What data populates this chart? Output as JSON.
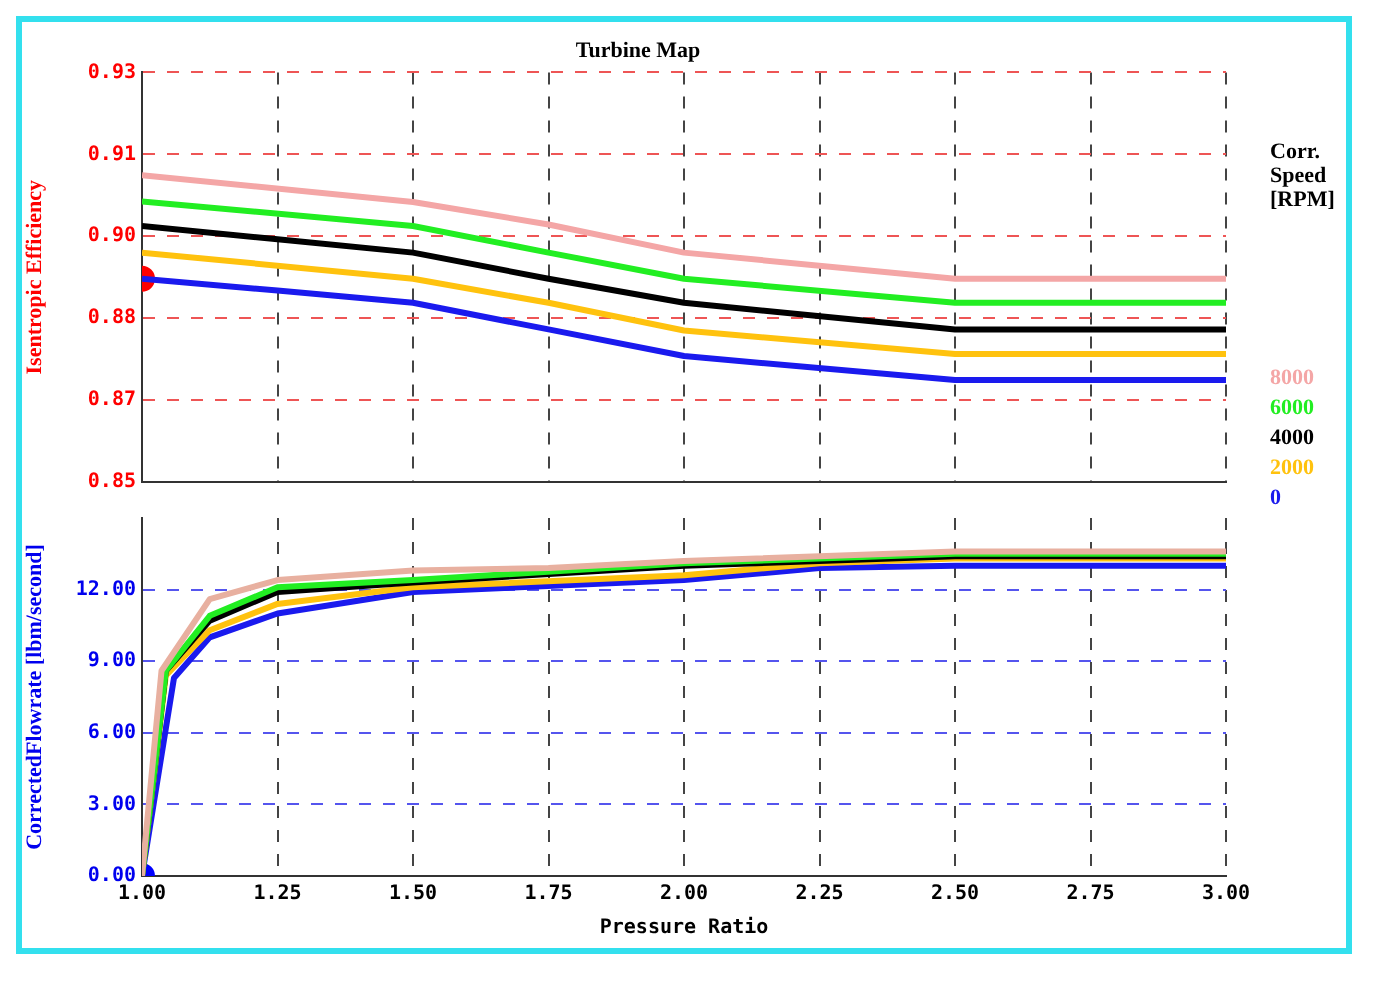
{
  "chart_data": [
    {
      "type": "line",
      "title": "Turbine Map",
      "ylabel": "Isentropic Efficiency",
      "legend_title": "Corr. Speed [RPM]",
      "legend": "right",
      "grid": true,
      "tick_labels": "y",
      "xlim": [
        1,
        3
      ],
      "xticks": [
        {
          "value": 1,
          "label": null
        },
        {
          "value": 1.25,
          "label": null
        },
        {
          "value": 1.5,
          "label": null
        },
        {
          "value": 1.75,
          "label": null
        },
        {
          "value": 2,
          "label": null
        },
        {
          "value": 2.25,
          "label": null
        },
        {
          "value": 2.5,
          "label": null
        },
        {
          "value": 2.75,
          "label": null
        },
        {
          "value": 3,
          "label": null
        }
      ],
      "ylim": [
        0.85,
        0.93
      ],
      "yticks": [
        {
          "value": 0.85,
          "label": "0.85"
        },
        {
          "value": 0.866,
          "label": "0.87"
        },
        {
          "value": 0.882,
          "label": "0.88"
        },
        {
          "value": 0.898,
          "label": "0.90"
        },
        {
          "value": 0.914,
          "label": "0.91"
        },
        {
          "value": 0.93,
          "label": "0.93"
        }
      ],
      "series": [
        {
          "name": "8000",
          "color": "#f4a6a6",
          "x": [
            1,
            1.5,
            1.75,
            2,
            2.5,
            3
          ],
          "values": [
            0.9099,
            0.9047,
            0.9003,
            0.8948,
            0.8897,
            0.8897
          ]
        },
        {
          "name": "6000",
          "color": "#22ee22",
          "x": [
            1,
            1.5,
            1.75,
            2,
            2.5,
            3
          ],
          "values": [
            0.9048,
            0.9,
            0.8948,
            0.8897,
            0.885,
            0.885
          ]
        },
        {
          "name": "4000",
          "color": "#000000",
          "x": [
            1,
            1.25,
            1.5,
            1.75,
            2,
            2.5,
            3
          ],
          "values": [
            0.9,
            0.8974,
            0.8948,
            0.8897,
            0.885,
            0.8798,
            0.8798
          ]
        },
        {
          "name": "2000",
          "color": "#ffc20e",
          "x": [
            1,
            1.5,
            1.75,
            2,
            2.5,
            3
          ],
          "values": [
            0.8948,
            0.8897,
            0.885,
            0.8796,
            0.875,
            0.875
          ]
        },
        {
          "name": "0",
          "color": "#1a1aee",
          "x": [
            1,
            1.25,
            1.5,
            1.75,
            2,
            2.5,
            3
          ],
          "values": [
            0.8897,
            0.8874,
            0.885,
            0.8798,
            0.8746,
            0.8699,
            0.8699
          ]
        },
        {
          "type": "scatter",
          "color": "#ff0000",
          "x": [
            1
          ],
          "values": [
            0.8897
          ]
        }
      ]
    },
    {
      "type": "line",
      "xlabel": "Pressure Ratio",
      "ylabel": "CorrectedFlowrate [lbm/second]",
      "grid": true,
      "xlim": [
        1,
        3
      ],
      "xticks": [
        {
          "value": 1,
          "label": "1.00"
        },
        {
          "value": 1.25,
          "label": "1.25"
        },
        {
          "value": 1.5,
          "label": "1.50"
        },
        {
          "value": 1.75,
          "label": "1.75"
        },
        {
          "value": 2,
          "label": "2.00"
        },
        {
          "value": 2.25,
          "label": "2.25"
        },
        {
          "value": 2.5,
          "label": "2.50"
        },
        {
          "value": 2.75,
          "label": "2.75"
        },
        {
          "value": 3,
          "label": "3.00"
        }
      ],
      "ylim": [
        0,
        15
      ],
      "yticks": [
        {
          "value": 0,
          "label": "0.00"
        },
        {
          "value": 3,
          "label": "3.00"
        },
        {
          "value": 6,
          "label": "6.00"
        },
        {
          "value": 9,
          "label": "9.00"
        },
        {
          "value": 12,
          "label": "12.00"
        }
      ],
      "series": [
        {
          "color": "#e8b0a0",
          "x": [
            1,
            1.036,
            1.125,
            1.25,
            1.5,
            1.75,
            2,
            2.5,
            3
          ],
          "values": [
            0,
            8.6,
            11.6,
            12.4,
            12.8,
            12.9,
            13.2,
            13.6,
            13.6
          ]
        },
        {
          "color": "#22ee22",
          "x": [
            1,
            1.044,
            1.125,
            1.25,
            1.5,
            2,
            2.5,
            3
          ],
          "values": [
            0,
            8.6,
            10.9,
            12.1,
            12.4,
            13.1,
            13.5,
            13.5
          ]
        },
        {
          "color": "#000000",
          "x": [
            1,
            1.044,
            1.125,
            1.25,
            1.5,
            2,
            2.5,
            3
          ],
          "values": [
            0,
            8.6,
            10.7,
            11.9,
            12.3,
            13,
            13.4,
            13.4
          ]
        },
        {
          "color": "#ffc20e",
          "x": [
            1,
            1.044,
            1.125,
            1.25,
            1.5,
            2,
            2.25,
            2.5,
            3
          ],
          "values": [
            0,
            8.4,
            10.3,
            11.4,
            12.1,
            12.6,
            13.1,
            13.3,
            13.3
          ]
        },
        {
          "color": "#1a1aee",
          "x": [
            1,
            1.059,
            1.125,
            1.25,
            1.5,
            2,
            2.25,
            2.5,
            3
          ],
          "values": [
            0,
            8.3,
            10,
            11,
            11.9,
            12.4,
            12.9,
            13,
            13
          ]
        },
        {
          "type": "scatter",
          "color": "#0000ff",
          "x": [
            1
          ],
          "values": [
            0
          ]
        }
      ]
    }
  ]
}
